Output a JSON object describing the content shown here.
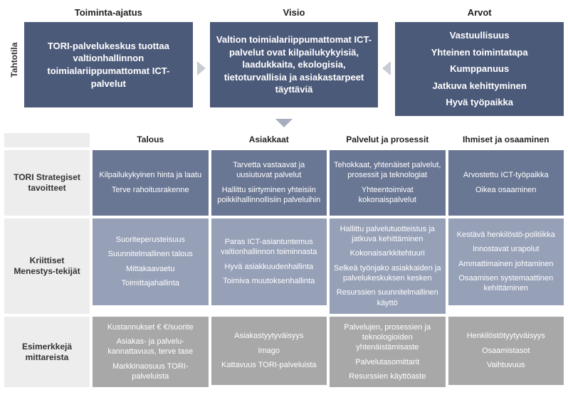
{
  "colors": {
    "top_box_bg": "#4c5a7a",
    "row1_bg": "#6a7794",
    "row2_bg": "#96a0b7",
    "row3_bg": "#a8a8a8",
    "row_label_bg": "#ededed",
    "arrow_light": "#c8cbd4",
    "arrow_dark": "#a6adbf",
    "text_dark": "#222222",
    "text_light": "#ffffff"
  },
  "typography": {
    "header_fontsize": 13,
    "cell_fontsize": 11,
    "rowlabel_fontsize": 12,
    "font_family": "Arial"
  },
  "sideLabel": "Tahtotila",
  "top": {
    "cols": [
      {
        "header": "Toiminta-ajatus",
        "lines": [
          "TORI-palvelukeskus tuottaa valtionhallinnon toimialariippumattomat ICT-palvelut"
        ]
      },
      {
        "header": "Visio",
        "lines": [
          "Valtion toimialariippumattomat ICT-palvelut ovat kilpailukykyisiä, laadukkaita, ekologisia, tietoturvallisia ja asiakastarpeet täyttäviä"
        ]
      },
      {
        "header": "Arvot",
        "lines": [
          "Vastuullisuus",
          "Yhteinen toimintatapa",
          "Kumppanuus",
          "Jatkuva kehittyminen",
          "Hyvä työpaikka"
        ]
      }
    ]
  },
  "matrix": {
    "colHeaders": [
      "Talous",
      "Asiakkaat",
      "Palvelut ja prosessit",
      "Ihmiset ja osaaminen"
    ],
    "rows": [
      {
        "label": "TORI Strategiset tavoitteet",
        "cells": [
          [
            "Kilpailukykyinen hinta ja laatu",
            "Terve rahoitusrakenne"
          ],
          [
            "Tarvetta vastaavat ja uusiutuvat palvelut",
            "Hallittu siirtyminen yhteisiin poikkihallinnollisiin palveluihin"
          ],
          [
            "Tehokkaat, yhtenäiset palvelut, prosessit ja teknologiat",
            "Yhteentoimivat kokonaispalvelut"
          ],
          [
            "Arvostettu ICT-työpaikka",
            "Oikea osaaminen"
          ]
        ]
      },
      {
        "label": "Kriittiset Menestys-tekijät",
        "cells": [
          [
            "Suoriteperusteisuus",
            "Suunnitelmallinen talous",
            "Mittakaavaetu",
            "Toimittajahallinta"
          ],
          [
            "Paras ICT-asiantuntemus valtionhallinnon toiminnasta",
            "Hyvä asiakkuudenhallinta",
            "Toimiva muutoksenhallinta"
          ],
          [
            "Hallittu palvelutuotteistus ja jatkuva kehittäminen",
            "Kokonaisarkkitehtuuri",
            "Selkeä työnjako asiakkaiden ja palvelukeskuksen kesken",
            "Resurssien suunnitelmallinen käyttö"
          ],
          [
            "Kestävä henkilöstö-politiikka",
            "Innostavat urapolut",
            "Ammattimainen johtaminen",
            "Osaamisen systemaattinen kehittäminen"
          ]
        ]
      },
      {
        "label": "Esimerkkejä mittareista",
        "cells": [
          [
            "Kustannukset € €/suorite",
            "Asiakas- ja palvelu-kannattavuus, terve tase",
            "Markkinaosuus TORI-palveluista"
          ],
          [
            "Asiakastyytyväisyys",
            "Imago",
            "Kattavuus TORI-palveluista"
          ],
          [
            "Palvelujen, prosessien ja teknologioiden yhtenäistämisaste",
            "Palvelutasomittarit",
            "Resurssien käyttöaste"
          ],
          [
            "Henkilöstötyytyväisyys",
            "Osaamistasot",
            "Vaihtuvuus"
          ]
        ]
      }
    ]
  }
}
